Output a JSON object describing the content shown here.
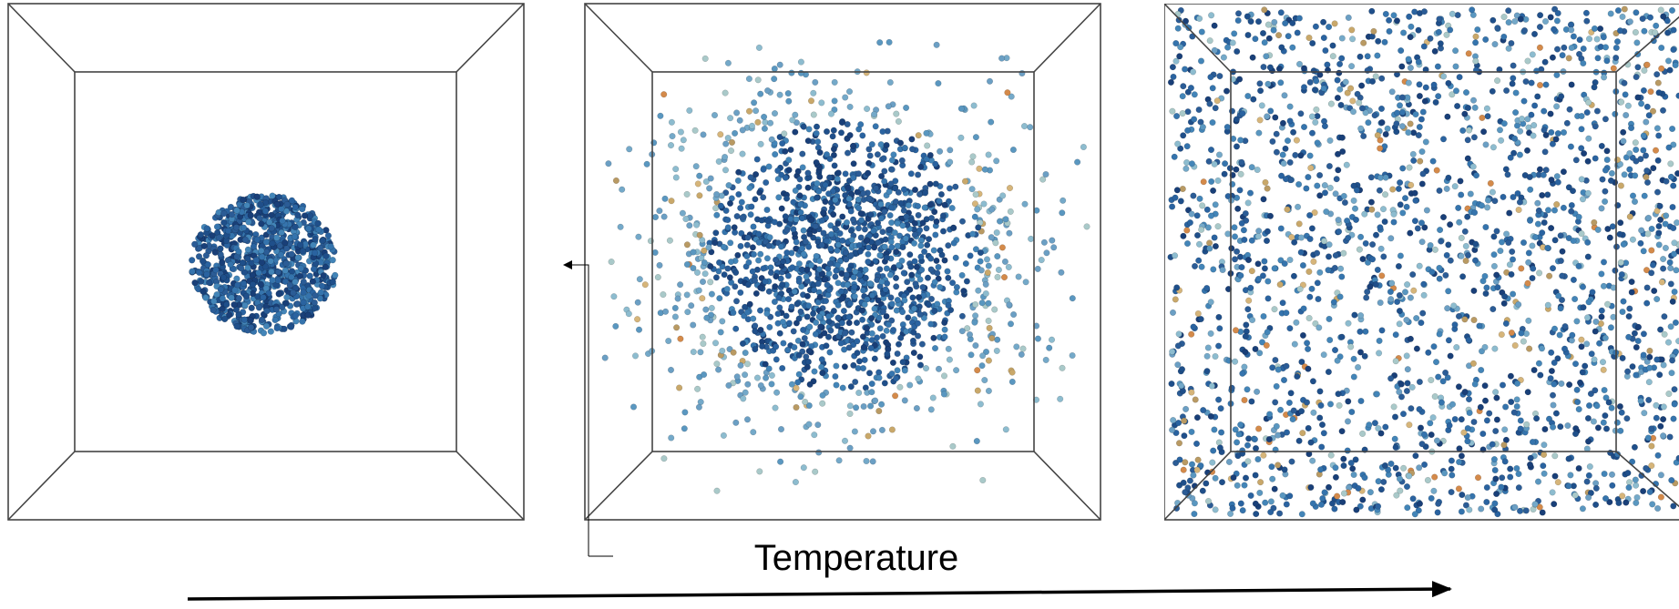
{
  "label": "Temperature"
}
